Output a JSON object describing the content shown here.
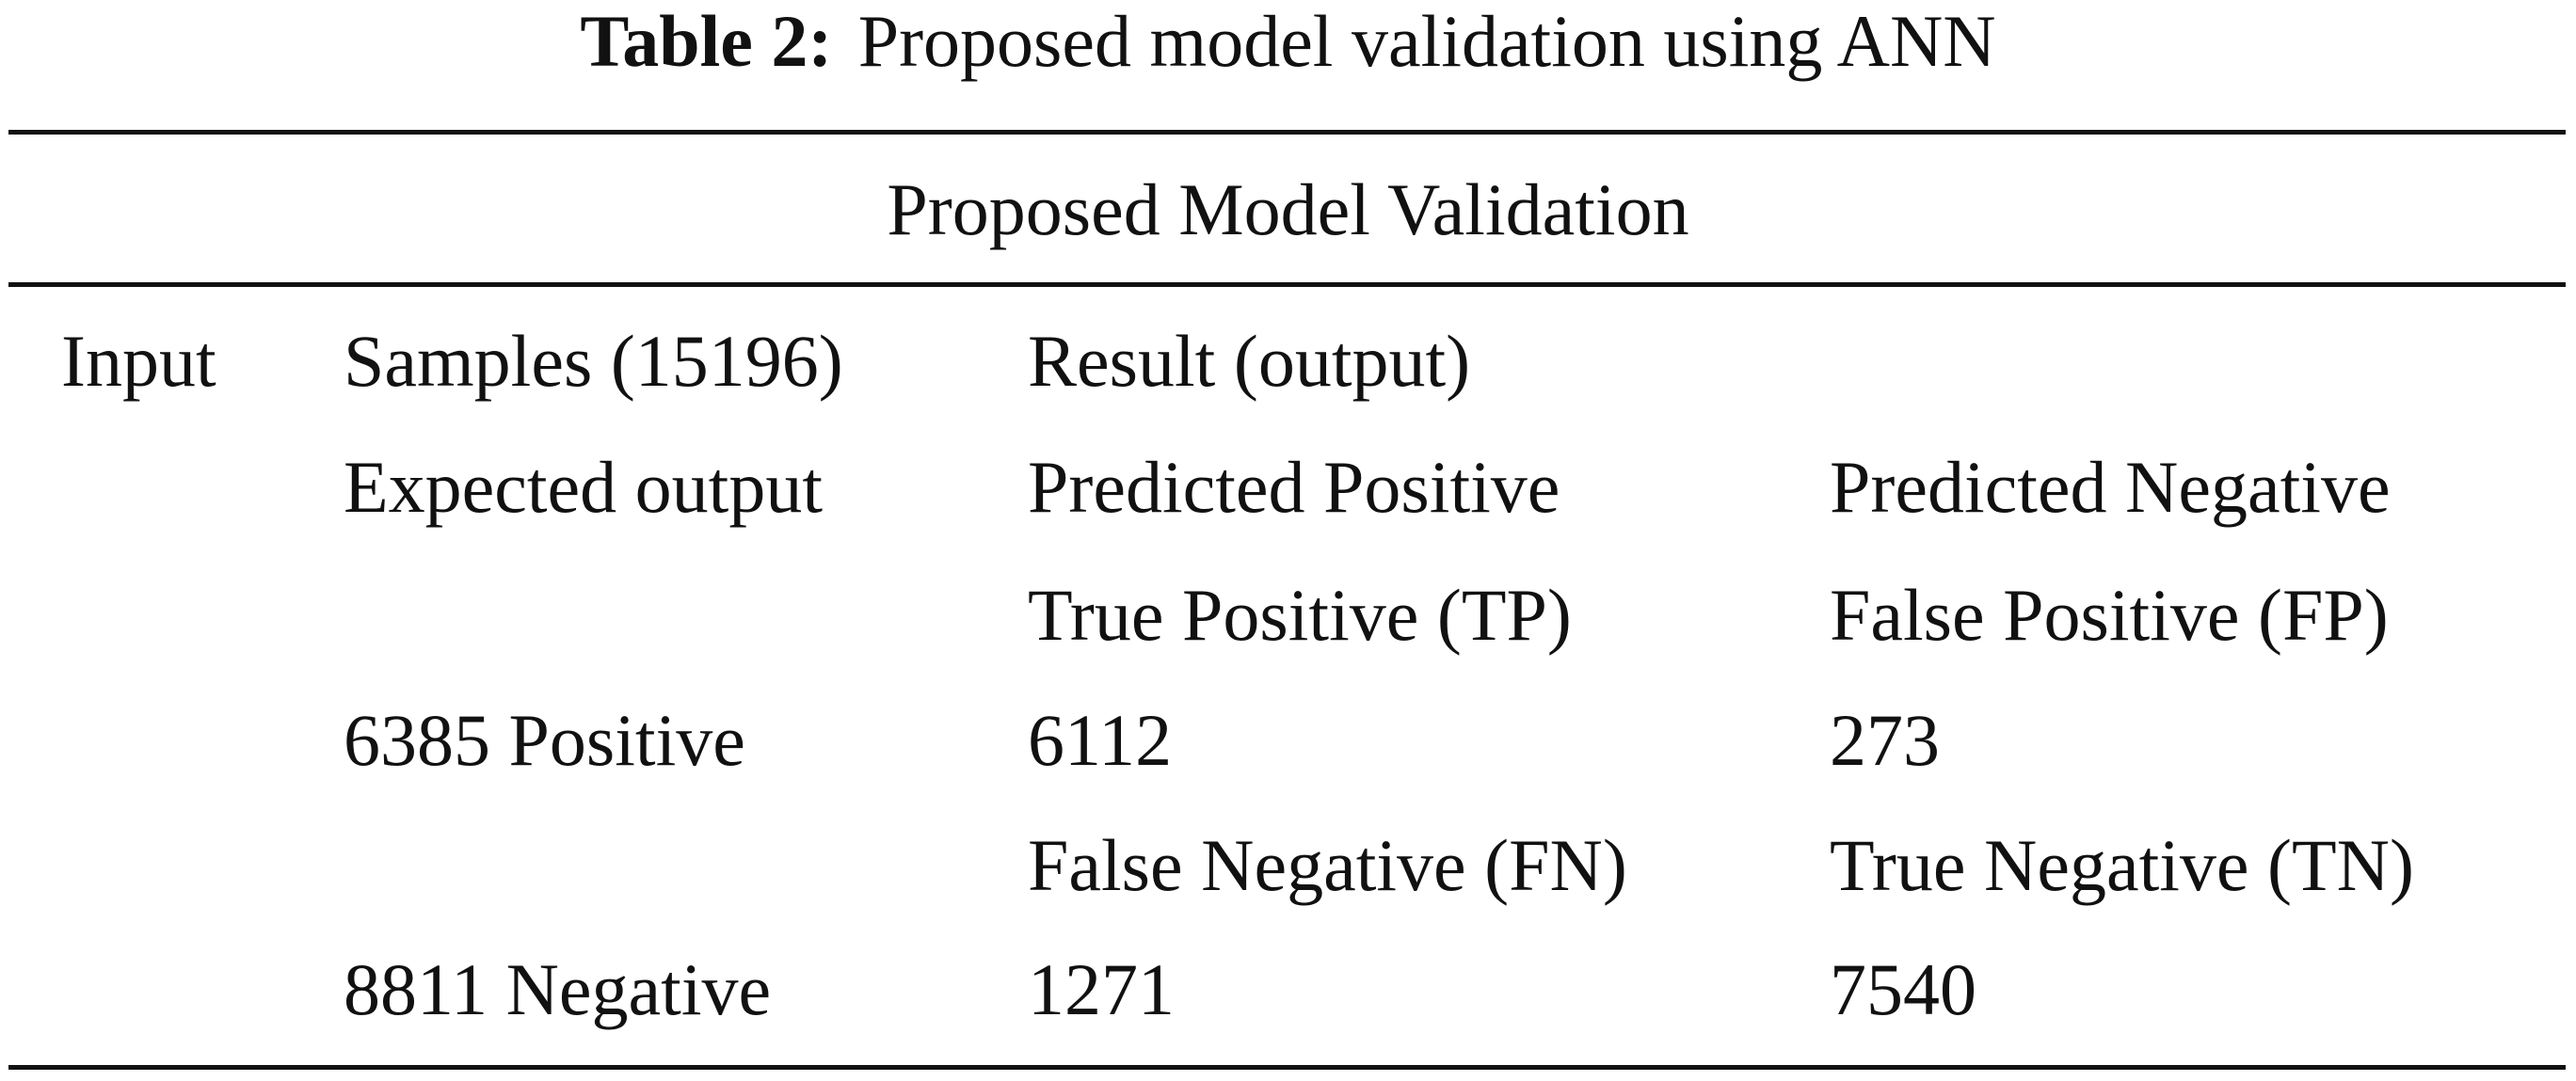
{
  "table": {
    "caption": {
      "label": "Table 2:",
      "text": "Proposed model validation using ANN"
    },
    "header": "Proposed Model Validation",
    "rows": [
      [
        "Input",
        "Samples (15196)",
        "Result (output)",
        null
      ],
      [
        null,
        "Expected output",
        "Predicted Positive",
        "Predicted Negative"
      ],
      [
        null,
        null,
        "True Positive (TP)",
        "False Positive (FP)"
      ],
      [
        null,
        "6385 Positive",
        "6112",
        "273"
      ],
      [
        null,
        null,
        "False Negative (FN)",
        "True Negative (TN)"
      ],
      [
        null,
        "8811 Negative",
        "1271",
        "7540"
      ]
    ]
  }
}
